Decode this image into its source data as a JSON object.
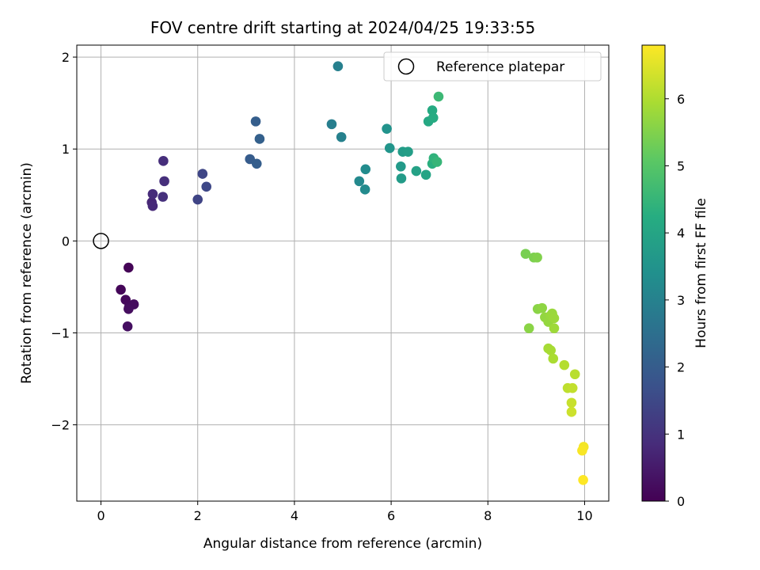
{
  "chart_data": {
    "type": "scatter",
    "title": "FOV centre drift starting at 2024/04/25 19:33:55",
    "xlabel": "Angular distance from reference (arcmin)",
    "ylabel": "Rotation from reference (arcmin)",
    "xlim": [
      -0.5,
      10.5
    ],
    "ylim": [
      -2.83,
      2.13
    ],
    "xticks": [
      0,
      2,
      4,
      6,
      8,
      10
    ],
    "yticks": [
      -2,
      -1,
      0,
      1,
      2
    ],
    "xtick_labels": [
      "0",
      "2",
      "4",
      "6",
      "8",
      "10"
    ],
    "ytick_labels": [
      "−2",
      "−1",
      "0",
      "1",
      "2"
    ],
    "grid": true,
    "legend": {
      "position": "top-right",
      "entries": [
        "Reference platepar"
      ]
    },
    "reference_point": {
      "x": 0,
      "y": 0,
      "label": "Reference platepar"
    },
    "colorbar": {
      "label": "Hours from first FF file",
      "colormap": "viridis",
      "range": [
        0,
        6.8
      ],
      "ticks": [
        0,
        1,
        2,
        3,
        4,
        5,
        6
      ],
      "tick_labels": [
        "0",
        "1",
        "2",
        "3",
        "4",
        "5",
        "6"
      ]
    },
    "series": [
      {
        "points": [
          {
            "x": 0.57,
            "y": -0.29,
            "c": 0.05
          },
          {
            "x": 0.41,
            "y": -0.53,
            "c": 0.1
          },
          {
            "x": 0.51,
            "y": -0.64,
            "c": 0.15
          },
          {
            "x": 0.58,
            "y": -0.72,
            "c": 0.2
          },
          {
            "x": 0.68,
            "y": -0.69,
            "c": 0.22
          },
          {
            "x": 0.57,
            "y": -0.74,
            "c": 0.25
          },
          {
            "x": 0.55,
            "y": -0.93,
            "c": 0.28
          },
          {
            "x": 1.05,
            "y": 0.42,
            "c": 0.75
          },
          {
            "x": 1.07,
            "y": 0.38,
            "c": 0.8
          },
          {
            "x": 1.07,
            "y": 0.51,
            "c": 0.85
          },
          {
            "x": 1.29,
            "y": 0.87,
            "c": 0.9
          },
          {
            "x": 1.31,
            "y": 0.65,
            "c": 0.92
          },
          {
            "x": 1.28,
            "y": 0.48,
            "c": 0.95
          },
          {
            "x": 2.0,
            "y": 0.45,
            "c": 1.4
          },
          {
            "x": 2.1,
            "y": 0.73,
            "c": 1.45
          },
          {
            "x": 2.18,
            "y": 0.59,
            "c": 1.5
          },
          {
            "x": 3.08,
            "y": 0.89,
            "c": 2.0
          },
          {
            "x": 3.2,
            "y": 1.3,
            "c": 2.05
          },
          {
            "x": 3.22,
            "y": 0.84,
            "c": 2.05
          },
          {
            "x": 3.28,
            "y": 1.11,
            "c": 2.1
          },
          {
            "x": 4.77,
            "y": 1.27,
            "c": 2.9
          },
          {
            "x": 4.9,
            "y": 1.9,
            "c": 2.95
          },
          {
            "x": 4.97,
            "y": 1.13,
            "c": 3.0
          },
          {
            "x": 5.34,
            "y": 0.65,
            "c": 3.2
          },
          {
            "x": 5.46,
            "y": 0.56,
            "c": 3.25
          },
          {
            "x": 5.47,
            "y": 0.78,
            "c": 3.3
          },
          {
            "x": 5.91,
            "y": 1.22,
            "c": 3.5
          },
          {
            "x": 5.97,
            "y": 1.01,
            "c": 3.55
          },
          {
            "x": 6.2,
            "y": 0.81,
            "c": 3.7
          },
          {
            "x": 6.21,
            "y": 0.68,
            "c": 3.72
          },
          {
            "x": 6.24,
            "y": 0.97,
            "c": 3.75
          },
          {
            "x": 6.35,
            "y": 0.97,
            "c": 3.8
          },
          {
            "x": 6.52,
            "y": 0.76,
            "c": 3.9
          },
          {
            "x": 6.72,
            "y": 0.72,
            "c": 4.0
          },
          {
            "x": 6.77,
            "y": 1.3,
            "c": 4.1
          },
          {
            "x": 6.85,
            "y": 1.42,
            "c": 4.15
          },
          {
            "x": 6.87,
            "y": 1.34,
            "c": 4.2
          },
          {
            "x": 6.85,
            "y": 0.84,
            "c": 4.3
          },
          {
            "x": 6.88,
            "y": 0.9,
            "c": 4.4
          },
          {
            "x": 6.95,
            "y": 0.86,
            "c": 4.5
          },
          {
            "x": 6.98,
            "y": 1.57,
            "c": 4.6
          },
          {
            "x": 8.78,
            "y": -0.14,
            "c": 5.4
          },
          {
            "x": 8.95,
            "y": -0.18,
            "c": 5.45
          },
          {
            "x": 9.02,
            "y": -0.18,
            "c": 5.5
          },
          {
            "x": 8.85,
            "y": -0.95,
            "c": 5.6
          },
          {
            "x": 9.03,
            "y": -0.74,
            "c": 5.6
          },
          {
            "x": 9.12,
            "y": -0.73,
            "c": 5.65
          },
          {
            "x": 9.18,
            "y": -0.83,
            "c": 5.7
          },
          {
            "x": 9.25,
            "y": -0.88,
            "c": 5.72
          },
          {
            "x": 9.3,
            "y": -0.81,
            "c": 5.75
          },
          {
            "x": 9.33,
            "y": -0.79,
            "c": 5.78
          },
          {
            "x": 9.37,
            "y": -0.84,
            "c": 5.8
          },
          {
            "x": 9.37,
            "y": -0.95,
            "c": 5.82
          },
          {
            "x": 9.25,
            "y": -1.17,
            "c": 5.9
          },
          {
            "x": 9.3,
            "y": -1.19,
            "c": 5.92
          },
          {
            "x": 9.35,
            "y": -1.28,
            "c": 5.95
          },
          {
            "x": 9.58,
            "y": -1.35,
            "c": 6.05
          },
          {
            "x": 9.8,
            "y": -1.45,
            "c": 6.1
          },
          {
            "x": 9.65,
            "y": -1.6,
            "c": 6.15
          },
          {
            "x": 9.75,
            "y": -1.6,
            "c": 6.2
          },
          {
            "x": 9.73,
            "y": -1.76,
            "c": 6.25
          },
          {
            "x": 9.73,
            "y": -1.86,
            "c": 6.3
          },
          {
            "x": 9.98,
            "y": -2.24,
            "c": 6.7
          },
          {
            "x": 9.95,
            "y": -2.28,
            "c": 6.75
          },
          {
            "x": 9.97,
            "y": -2.6,
            "c": 6.8
          }
        ]
      }
    ]
  }
}
